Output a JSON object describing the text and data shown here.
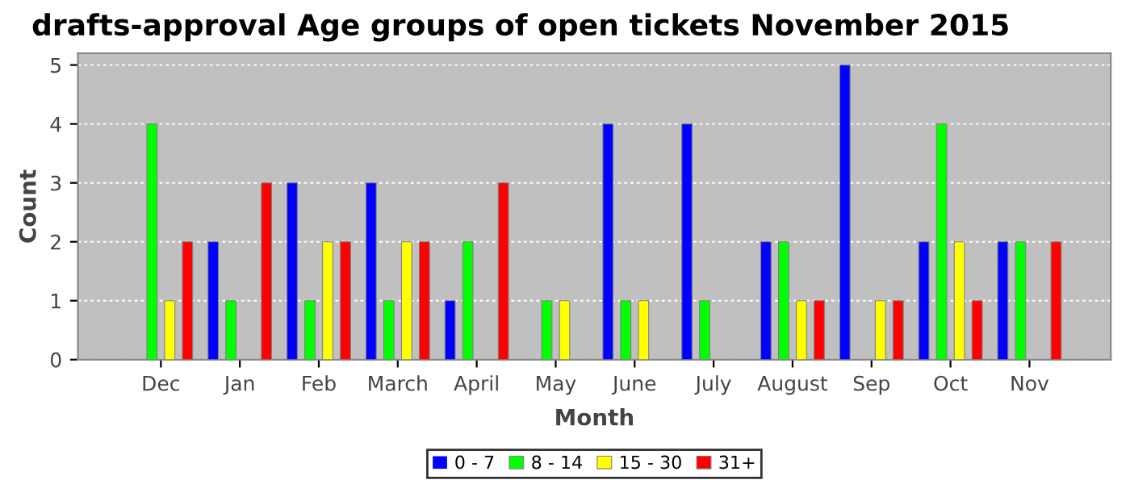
{
  "chart_data": {
    "type": "bar",
    "title": "drafts-approval Age groups of open tickets November 2015",
    "xlabel": "Month",
    "ylabel": "Count",
    "categories": [
      "Dec",
      "Jan",
      "Feb",
      "March",
      "April",
      "May",
      "June",
      "July",
      "August",
      "Sep",
      "Oct",
      "Nov"
    ],
    "series": [
      {
        "name": "0 - 7",
        "color": "#0000ff",
        "values": [
          0,
          2,
          3,
          3,
          1,
          0,
          4,
          4,
          2,
          5,
          2,
          2
        ]
      },
      {
        "name": "8 - 14",
        "color": "#00ff00",
        "values": [
          4,
          1,
          1,
          1,
          2,
          1,
          1,
          1,
          2,
          0,
          4,
          2
        ]
      },
      {
        "name": "15 - 30",
        "color": "#ffff00",
        "values": [
          1,
          0,
          2,
          2,
          0,
          1,
          1,
          0,
          1,
          1,
          2,
          0
        ]
      },
      {
        "name": "31+",
        "color": "#ff0000",
        "values": [
          2,
          3,
          2,
          2,
          3,
          0,
          0,
          0,
          1,
          1,
          1,
          2
        ]
      }
    ],
    "ylim": [
      0,
      5.2
    ],
    "yticks": [
      0,
      1,
      2,
      3,
      4,
      5
    ],
    "grid": "y",
    "legend": "bottom"
  }
}
